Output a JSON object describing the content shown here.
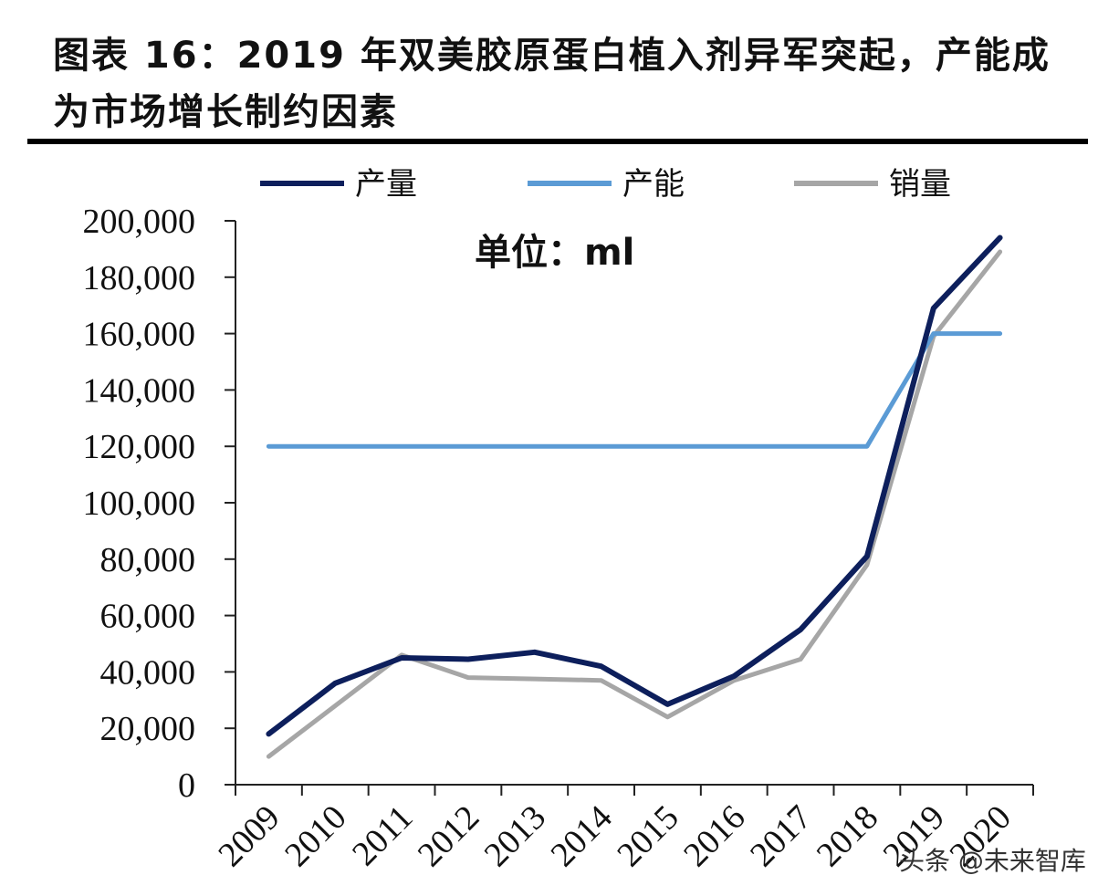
{
  "title": "图表 16：2019 年双美胶原蛋白植入剂异军突起，产能成为市场增长制约因素",
  "watermark": "头条 @未来智库",
  "chart_data": {
    "type": "line",
    "annotation": "单位：ml",
    "legend_position": "top",
    "categories": [
      "2009",
      "2010",
      "2011",
      "2012",
      "2013",
      "2014",
      "2015",
      "2016",
      "2017",
      "2018",
      "2019",
      "2020"
    ],
    "ylim": [
      0,
      200000
    ],
    "yticks": [
      0,
      20000,
      40000,
      60000,
      80000,
      100000,
      120000,
      140000,
      160000,
      180000,
      200000
    ],
    "ytick_labels": [
      "0",
      "20,000",
      "40,000",
      "60,000",
      "80,000",
      "100,000",
      "120,000",
      "140,000",
      "160,000",
      "180,000",
      "200,000"
    ],
    "grid": false,
    "series": [
      {
        "name": "产量",
        "color": "#0d1f5c",
        "values": [
          18000,
          36000,
          45000,
          44500,
          47000,
          42000,
          28500,
          38500,
          55000,
          81000,
          169000,
          194000
        ]
      },
      {
        "name": "产能",
        "color": "#5b9bd5",
        "values": [
          120000,
          120000,
          120000,
          120000,
          120000,
          120000,
          120000,
          120000,
          120000,
          120000,
          160000,
          160000
        ]
      },
      {
        "name": "销量",
        "color": "#a6a6a6",
        "values": [
          10000,
          28000,
          46000,
          38000,
          37500,
          37000,
          24000,
          37000,
          44500,
          78000,
          159000,
          189000
        ]
      }
    ]
  }
}
